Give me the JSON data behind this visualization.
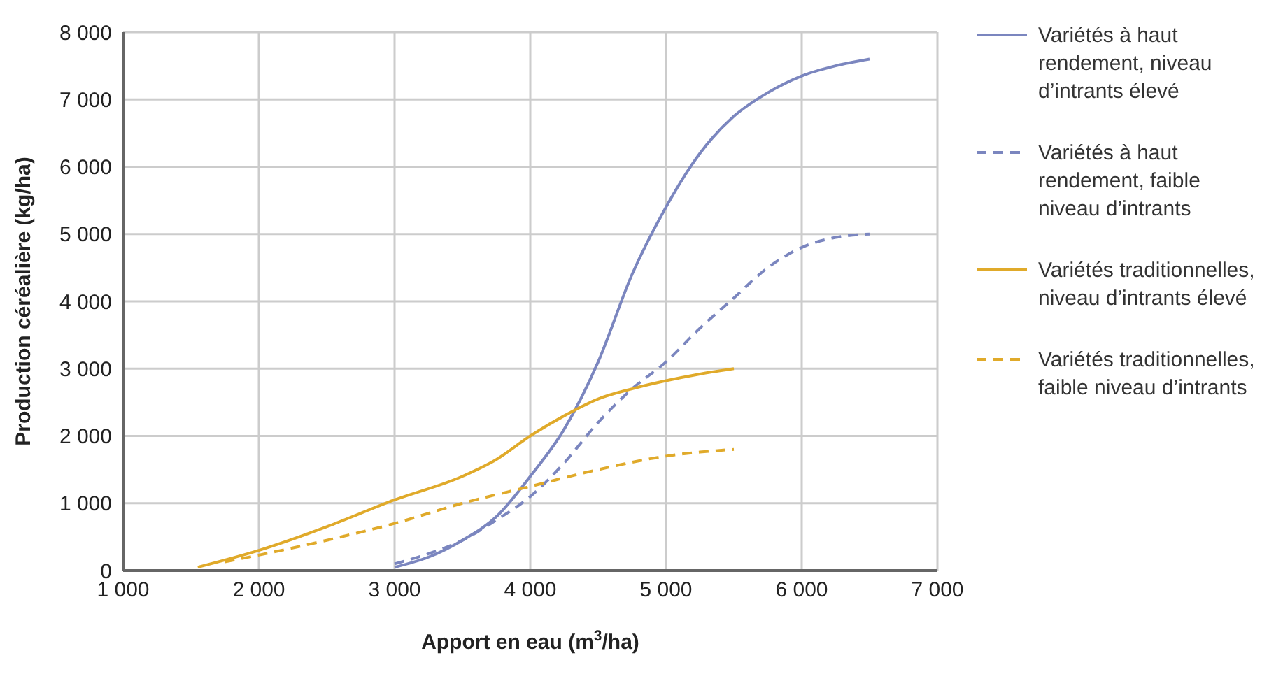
{
  "chart_data": {
    "type": "line",
    "xlabel": "Apport en eau (m$^{3}$/ha)",
    "ylabel": "Production céréalière (kg/ha)",
    "xlim": [
      1000,
      7000
    ],
    "xticks": [
      {
        "value": 1000,
        "label": "1 000"
      },
      {
        "value": 2000,
        "label": "2 000"
      },
      {
        "value": 3000,
        "label": "3 000"
      },
      {
        "value": 4000,
        "label": "4 000"
      },
      {
        "value": 5000,
        "label": "5 000"
      },
      {
        "value": 6000,
        "label": "6 000"
      },
      {
        "value": 7000,
        "label": "7 000"
      }
    ],
    "ylim": [
      0,
      8000
    ],
    "yticks": [
      0,
      {
        "value": 1000,
        "label": "1 000"
      },
      {
        "value": 2000,
        "label": "2 000"
      },
      {
        "value": 3000,
        "label": "3 000"
      },
      {
        "value": 4000,
        "label": "4 000"
      },
      {
        "value": 5000,
        "label": "5 000"
      },
      {
        "value": 6000,
        "label": "6 000"
      },
      {
        "value": 7000,
        "label": "7 000"
      },
      {
        "value": 8000,
        "label": "8 000"
      }
    ],
    "grid": true,
    "legend": "right",
    "marker": "none",
    "series": [
      {
        "name": "Variétés à haut rendement, niveau d’intrants élevé",
        "color": "#7b86bf",
        "line_style": "solid",
        "x": [
          3000,
          3250,
          3500,
          3750,
          4000,
          4250,
          4500,
          4750,
          5000,
          5250,
          5500,
          5750,
          6000,
          6250,
          6500
        ],
        "values": [
          50,
          200,
          450,
          800,
          1400,
          2100,
          3100,
          4400,
          5400,
          6200,
          6750,
          7100,
          7350,
          7500,
          7600
        ]
      },
      {
        "name": "Variétés à haut rendement, faible niveau d’intrants",
        "color": "#7b86bf",
        "line_style": "dashed",
        "x": [
          3000,
          3250,
          3500,
          3750,
          4000,
          4250,
          4500,
          4750,
          5000,
          5250,
          5500,
          5750,
          6000,
          6250,
          6500
        ],
        "values": [
          100,
          250,
          450,
          750,
          1100,
          1600,
          2200,
          2700,
          3100,
          3600,
          4050,
          4500,
          4800,
          4950,
          5000
        ]
      },
      {
        "name": "Variétés traditionnelles, niveau d’intrants élevé",
        "color": "#e0aa2a",
        "line_style": "solid",
        "x": [
          1550,
          2000,
          2500,
          3000,
          3500,
          3750,
          4000,
          4250,
          4500,
          4750,
          5000,
          5250,
          5500
        ],
        "values": [
          50,
          300,
          650,
          1050,
          1400,
          1650,
          2000,
          2300,
          2550,
          2700,
          2820,
          2920,
          3000
        ]
      },
      {
        "name": "Variétés traditionnelles, faible niveau d’intrants",
        "color": "#e0aa2a",
        "line_style": "dashed",
        "x": [
          1750,
          2000,
          2500,
          3000,
          3500,
          4000,
          4500,
          5000,
          5250,
          5500
        ],
        "values": [
          130,
          230,
          450,
          700,
          1000,
          1250,
          1500,
          1700,
          1760,
          1800
        ]
      }
    ]
  }
}
